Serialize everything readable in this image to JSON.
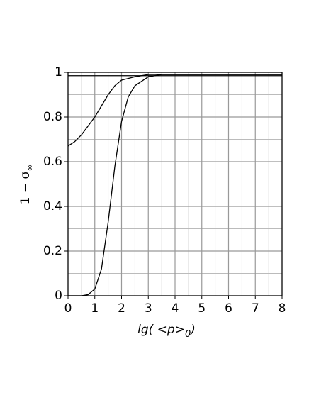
{
  "chart_data": {
    "type": "line",
    "x_label": {
      "main": "lg( <p>",
      "sub": "0",
      "close": ")"
    },
    "y_label": {
      "main": "1 − σ",
      "sub": "∞"
    },
    "xlim": [
      0,
      8
    ],
    "xticks": [
      0,
      1,
      2,
      3,
      4,
      5,
      6,
      7,
      8
    ],
    "ylim": [
      0,
      1
    ],
    "yticks": [
      0,
      0.2,
      0.4,
      0.6,
      0.8,
      1
    ],
    "grid": true,
    "series": [
      {
        "color": "#000000",
        "x": [
          0,
          8
        ],
        "values": [
          0.985,
          0.985
        ]
      },
      {
        "color": "#000000",
        "x": [
          0,
          0.25,
          0.5,
          0.75,
          1,
          1.25,
          1.5,
          1.75,
          2,
          2.5,
          3,
          4,
          8
        ],
        "values": [
          0.67,
          0.69,
          0.72,
          0.76,
          0.8,
          0.85,
          0.9,
          0.94,
          0.965,
          0.98,
          0.99,
          0.99,
          0.99
        ]
      },
      {
        "color": "#000000",
        "x": [
          0,
          0.5,
          0.75,
          1,
          1.25,
          1.5,
          1.75,
          2,
          2.25,
          2.5,
          3,
          3.5,
          4,
          8
        ],
        "values": [
          0,
          0,
          0.005,
          0.03,
          0.12,
          0.33,
          0.58,
          0.78,
          0.89,
          0.94,
          0.98,
          0.99,
          0.99,
          0.99
        ]
      }
    ]
  }
}
